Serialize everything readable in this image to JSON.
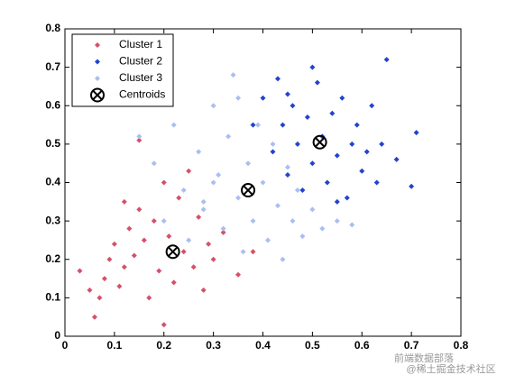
{
  "chart_data": {
    "type": "scatter",
    "xlim": [
      0,
      0.8
    ],
    "ylim": [
      0,
      0.8
    ],
    "xticks": [
      0,
      0.1,
      0.2,
      0.3,
      0.4,
      0.5,
      0.6,
      0.7,
      0.8
    ],
    "yticks": [
      0,
      0.1,
      0.2,
      0.3,
      0.4,
      0.5,
      0.6,
      0.7,
      0.8
    ],
    "legend": "upper left",
    "series": [
      {
        "name": "Cluster 1",
        "color": "#d6506b",
        "marker": "diamond",
        "x": [
          0.03,
          0.05,
          0.06,
          0.07,
          0.08,
          0.09,
          0.1,
          0.11,
          0.12,
          0.13,
          0.14,
          0.15,
          0.16,
          0.17,
          0.18,
          0.19,
          0.2,
          0.21,
          0.22,
          0.23,
          0.24,
          0.25,
          0.26,
          0.27,
          0.28,
          0.29,
          0.3,
          0.32,
          0.35,
          0.38,
          0.2,
          0.15,
          0.12
        ],
        "values": [
          0.17,
          0.12,
          0.05,
          0.1,
          0.15,
          0.2,
          0.24,
          0.13,
          0.18,
          0.28,
          0.21,
          0.33,
          0.25,
          0.1,
          0.3,
          0.17,
          0.03,
          0.26,
          0.14,
          0.36,
          0.22,
          0.43,
          0.18,
          0.31,
          0.12,
          0.24,
          0.2,
          0.27,
          0.16,
          0.22,
          0.4,
          0.51,
          0.35
        ]
      },
      {
        "name": "Cluster 2",
        "color": "#2343cf",
        "marker": "diamond",
        "x": [
          0.38,
          0.4,
          0.42,
          0.43,
          0.44,
          0.45,
          0.46,
          0.47,
          0.48,
          0.49,
          0.5,
          0.51,
          0.52,
          0.53,
          0.54,
          0.55,
          0.56,
          0.57,
          0.58,
          0.59,
          0.6,
          0.61,
          0.62,
          0.63,
          0.64,
          0.65,
          0.67,
          0.7,
          0.71,
          0.5,
          0.45,
          0.55
        ],
        "values": [
          0.55,
          0.62,
          0.48,
          0.67,
          0.55,
          0.42,
          0.6,
          0.5,
          0.38,
          0.57,
          0.45,
          0.66,
          0.52,
          0.4,
          0.58,
          0.47,
          0.62,
          0.36,
          0.5,
          0.55,
          0.43,
          0.48,
          0.6,
          0.4,
          0.5,
          0.72,
          0.46,
          0.39,
          0.53,
          0.7,
          0.63,
          0.35
        ]
      },
      {
        "name": "Cluster 3",
        "color": "#a9bff0",
        "marker": "diamond",
        "x": [
          0.15,
          0.18,
          0.2,
          0.22,
          0.24,
          0.25,
          0.27,
          0.28,
          0.3,
          0.31,
          0.32,
          0.33,
          0.34,
          0.35,
          0.36,
          0.37,
          0.38,
          0.39,
          0.4,
          0.41,
          0.42,
          0.43,
          0.44,
          0.45,
          0.46,
          0.47,
          0.48,
          0.5,
          0.52,
          0.55,
          0.58,
          0.35,
          0.3,
          0.28
        ],
        "values": [
          0.52,
          0.45,
          0.3,
          0.55,
          0.38,
          0.25,
          0.48,
          0.33,
          0.6,
          0.42,
          0.28,
          0.52,
          0.68,
          0.36,
          0.22,
          0.45,
          0.3,
          0.55,
          0.4,
          0.25,
          0.5,
          0.34,
          0.2,
          0.44,
          0.3,
          0.38,
          0.26,
          0.33,
          0.28,
          0.3,
          0.29,
          0.62,
          0.4,
          0.35
        ]
      },
      {
        "name": "Centroids",
        "color": "#000000",
        "marker": "x-circle",
        "x": [
          0.218,
          0.37,
          0.515
        ],
        "values": [
          0.22,
          0.38,
          0.505
        ]
      }
    ],
    "watermark": [
      "前端数据部落",
      "@稀土掘金技术社区"
    ]
  }
}
